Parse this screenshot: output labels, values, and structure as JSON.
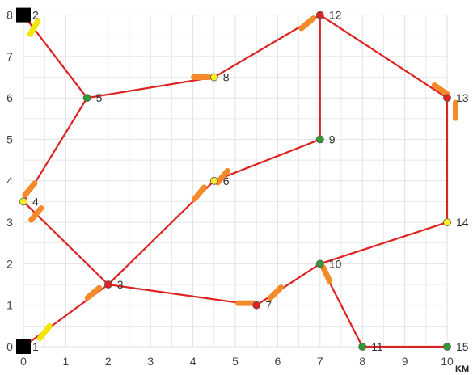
{
  "diagram": {
    "unit_label": "KM",
    "x_ticks": [
      "0",
      "1",
      "2",
      "3",
      "4",
      "5",
      "6",
      "7",
      "8",
      "9",
      "10"
    ],
    "y_ticks": [
      "0",
      "1",
      "2",
      "3",
      "4",
      "5",
      "6",
      "7",
      "8"
    ],
    "x_range": [
      0,
      10
    ],
    "y_range": [
      0,
      8
    ],
    "grid_minor_step": 0.5,
    "colors": {
      "route": "#dd2222",
      "depot": "#000000",
      "green": "#339933",
      "yellow": "#ffee22",
      "red": "#dd2222",
      "orange_marker": "#f58a2a",
      "yellow_marker": "#f2e600",
      "grid": "#e2e2e2"
    },
    "nodes": [
      {
        "id": "1",
        "label": "1",
        "x": 0,
        "y": 0,
        "kind": "depot"
      },
      {
        "id": "2",
        "label": "2",
        "x": 0,
        "y": 8,
        "kind": "depot"
      },
      {
        "id": "3",
        "label": "3",
        "x": 2,
        "y": 1.5,
        "kind": "red"
      },
      {
        "id": "4",
        "label": "4",
        "x": 0,
        "y": 3.5,
        "kind": "yellow"
      },
      {
        "id": "5",
        "label": "5",
        "x": 1.5,
        "y": 6,
        "kind": "green"
      },
      {
        "id": "6",
        "label": "6",
        "x": 4.5,
        "y": 4,
        "kind": "yellow"
      },
      {
        "id": "7",
        "label": "7",
        "x": 5.5,
        "y": 1,
        "kind": "red"
      },
      {
        "id": "8",
        "label": "8",
        "x": 4.5,
        "y": 6.5,
        "kind": "yellow"
      },
      {
        "id": "9",
        "label": "9",
        "x": 7,
        "y": 5,
        "kind": "green"
      },
      {
        "id": "10",
        "label": "10",
        "x": 7,
        "y": 2,
        "kind": "green"
      },
      {
        "id": "11",
        "label": "11",
        "x": 8,
        "y": 0,
        "kind": "green"
      },
      {
        "id": "12",
        "label": "12",
        "x": 7,
        "y": 8,
        "kind": "red"
      },
      {
        "id": "13",
        "label": "13",
        "x": 10,
        "y": 6,
        "kind": "red"
      },
      {
        "id": "14",
        "label": "14",
        "x": 10,
        "y": 3,
        "kind": "yellow"
      },
      {
        "id": "15",
        "label": "15",
        "x": 10,
        "y": 0,
        "kind": "green"
      }
    ],
    "edges": [
      [
        "1",
        "3"
      ],
      [
        "3",
        "4"
      ],
      [
        "4",
        "5"
      ],
      [
        "5",
        "2"
      ],
      [
        "5",
        "8"
      ],
      [
        "8",
        "12"
      ],
      [
        "12",
        "9"
      ],
      [
        "12",
        "13"
      ],
      [
        "13",
        "14"
      ],
      [
        "14",
        "10"
      ],
      [
        "10",
        "11"
      ],
      [
        "11",
        "15"
      ],
      [
        "3",
        "6"
      ],
      [
        "6",
        "9"
      ],
      [
        "3",
        "7"
      ],
      [
        "7",
        "10"
      ]
    ],
    "markers": [
      {
        "x": 0.25,
        "y": 7.7,
        "angle": 30,
        "color": "yellow"
      },
      {
        "x": 0.5,
        "y": 0.35,
        "angle": 38,
        "color": "yellow"
      },
      {
        "x": 0.15,
        "y": 3.8,
        "angle": 40,
        "color": "orange"
      },
      {
        "x": 0.3,
        "y": 3.2,
        "angle": 40,
        "color": "orange"
      },
      {
        "x": 1.65,
        "y": 1.3,
        "angle": 50,
        "color": "orange"
      },
      {
        "x": 4.2,
        "y": 6.5,
        "angle": 90,
        "color": "orange"
      },
      {
        "x": 6.7,
        "y": 7.8,
        "angle": 50,
        "color": "orange"
      },
      {
        "x": 10.2,
        "y": 5.7,
        "angle": 0,
        "color": "orange"
      },
      {
        "x": 9.85,
        "y": 6.2,
        "angle": -55,
        "color": "orange"
      },
      {
        "x": 4.7,
        "y": 4.1,
        "angle": 40,
        "color": "orange"
      },
      {
        "x": 4.15,
        "y": 3.7,
        "angle": 40,
        "color": "orange"
      },
      {
        "x": 5.25,
        "y": 1.05,
        "angle": 90,
        "color": "orange"
      },
      {
        "x": 5.95,
        "y": 1.3,
        "angle": 45,
        "color": "orange"
      },
      {
        "x": 7.15,
        "y": 1.75,
        "angle": -25,
        "color": "orange"
      }
    ]
  }
}
